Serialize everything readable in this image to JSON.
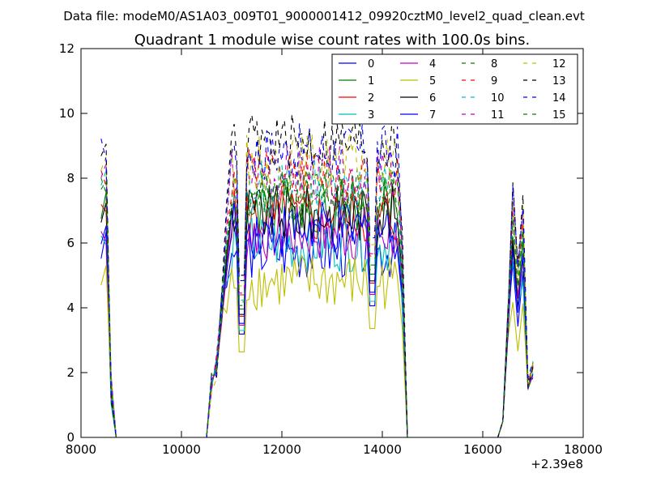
{
  "header": {
    "file_label": "Data file: modeM0/AS1A03_009T01_9000001412_09920cztM0_level2_quad_clean.evt"
  },
  "chart_data": {
    "type": "line",
    "title": "Quadrant 1 module wise count rates with 100.0s bins.",
    "xlabel": "",
    "ylabel": "",
    "x_offset_label": "+2.39e8",
    "xlim": [
      8000,
      18000
    ],
    "ylim": [
      0,
      12
    ],
    "x_ticks": [
      8000,
      10000,
      12000,
      14000,
      16000,
      18000
    ],
    "y_ticks": [
      0,
      2,
      4,
      6,
      8,
      10,
      12
    ],
    "legend_position": "top-right",
    "grid": false,
    "series": [
      {
        "name": "0",
        "color": "#0000ff",
        "style": "solid",
        "level": 5.8,
        "offset": 0
      },
      {
        "name": "1",
        "color": "#008000",
        "style": "solid",
        "level": 7.2,
        "offset": 1
      },
      {
        "name": "2",
        "color": "#ff0000",
        "style": "solid",
        "level": 6.8,
        "offset": 2
      },
      {
        "name": "3",
        "color": "#00bfbf",
        "style": "solid",
        "level": 6.0,
        "offset": 3
      },
      {
        "name": "4",
        "color": "#bf00bf",
        "style": "solid",
        "level": 6.3,
        "offset": 4
      },
      {
        "name": "5",
        "color": "#bfbf00",
        "style": "solid",
        "level": 4.8,
        "offset": 5
      },
      {
        "name": "6",
        "color": "#000000",
        "style": "solid",
        "level": 6.9,
        "offset": 6
      },
      {
        "name": "7",
        "color": "#0000ff",
        "style": "solid",
        "level": 6.4,
        "offset": 7
      },
      {
        "name": "8",
        "color": "#008000",
        "style": "dashed",
        "level": 7.6,
        "offset": 8
      },
      {
        "name": "9",
        "color": "#ff0000",
        "style": "dashed",
        "level": 8.0,
        "offset": 9
      },
      {
        "name": "10",
        "color": "#00bfbf",
        "style": "dashed",
        "level": 7.7,
        "offset": 10
      },
      {
        "name": "11",
        "color": "#bf00bf",
        "style": "dashed",
        "level": 8.1,
        "offset": 11
      },
      {
        "name": "12",
        "color": "#bfbf00",
        "style": "dashed",
        "level": 8.5,
        "offset": 12
      },
      {
        "name": "13",
        "color": "#000000",
        "style": "dashed",
        "level": 9.1,
        "offset": 13
      },
      {
        "name": "14",
        "color": "#0000ff",
        "style": "dashed",
        "level": 8.8,
        "offset": 14
      },
      {
        "name": "15",
        "color": "#008000",
        "style": "dashed",
        "level": 7.4,
        "offset": 15
      }
    ]
  }
}
